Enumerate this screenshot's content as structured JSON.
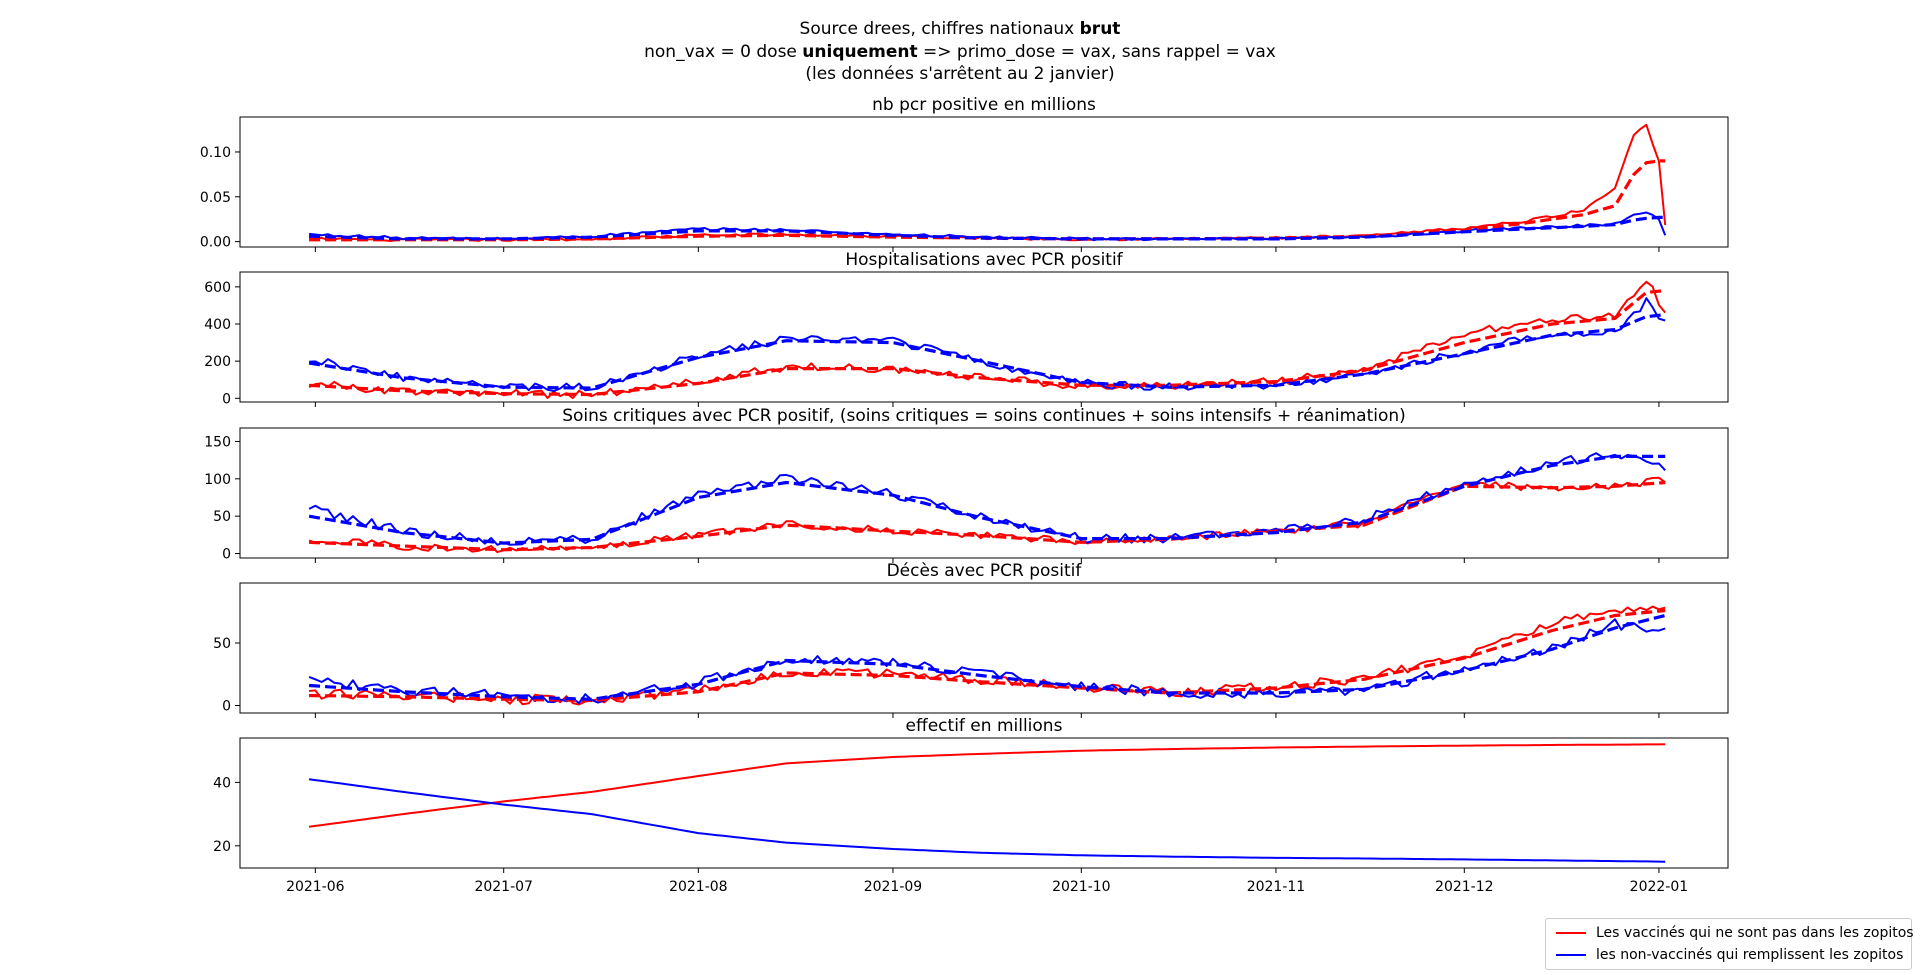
{
  "suptitle": {
    "line1_prefix": "Source drees, chiffres nationaux ",
    "line1_bold": "brut",
    "line2_prefix": "non_vax = 0 dose ",
    "line2_bold": "uniquement",
    "line2_suffix": " => primo_dose = vax, sans rappel = vax",
    "line3": "(les données s'arrêtent au 2 janvier)"
  },
  "colors": {
    "vax": "#ff0000",
    "nonvax": "#0000ff"
  },
  "legend": [
    {
      "label": "Les vaccinés qui ne sont pas dans les zopitos",
      "color": "#ff0000"
    },
    {
      "label": "les non-vaccinés qui remplissent les zopitos",
      "color": "#0000ff"
    }
  ],
  "chart_data": [
    {
      "type": "line",
      "title": "nb pcr positive en millions",
      "ylim": [
        -0.006,
        0.139
      ],
      "yticks": [
        0.0,
        0.05,
        0.1
      ],
      "yticklabels": [
        "0.00",
        "0.05",
        "0.10"
      ],
      "x_knots": [
        "2021-05-31",
        "2021-06-15",
        "2021-07-01",
        "2021-07-15",
        "2021-08-01",
        "2021-08-15",
        "2021-09-01",
        "2021-09-15",
        "2021-10-01",
        "2021-10-15",
        "2021-11-01",
        "2021-11-15",
        "2021-12-01",
        "2021-12-10",
        "2021-12-20",
        "2021-12-25",
        "2021-12-28",
        "2021-12-30",
        "2022-01-01",
        "2022-01-02"
      ],
      "series": [
        {
          "color": "#ff0000",
          "noise": 0.0015,
          "values": [
            0.003,
            0.002,
            0.002,
            0.003,
            0.007,
            0.008,
            0.006,
            0.004,
            0.003,
            0.003,
            0.004,
            0.006,
            0.015,
            0.022,
            0.035,
            0.06,
            0.12,
            0.13,
            0.09,
            0.02
          ]
        },
        {
          "color": "#0000ff",
          "noise": 0.0015,
          "values": [
            0.008,
            0.004,
            0.003,
            0.006,
            0.014,
            0.013,
            0.008,
            0.005,
            0.003,
            0.003,
            0.003,
            0.005,
            0.012,
            0.015,
            0.018,
            0.02,
            0.03,
            0.033,
            0.025,
            0.008
          ]
        },
        {
          "color": "#ff0000",
          "dashed": true,
          "values": [
            0.002,
            0.002,
            0.002,
            0.003,
            0.006,
            0.007,
            0.005,
            0.004,
            0.003,
            0.003,
            0.004,
            0.006,
            0.013,
            0.02,
            0.03,
            0.04,
            0.075,
            0.088,
            0.09,
            0.09
          ]
        },
        {
          "color": "#0000ff",
          "dashed": true,
          "values": [
            0.006,
            0.003,
            0.003,
            0.005,
            0.012,
            0.012,
            0.007,
            0.004,
            0.003,
            0.003,
            0.003,
            0.005,
            0.011,
            0.014,
            0.017,
            0.019,
            0.024,
            0.026,
            0.027,
            0.027
          ]
        }
      ]
    },
    {
      "type": "line",
      "title": "Hospitalisations avec PCR positif",
      "ylim": [
        -20,
        680
      ],
      "yticks": [
        0,
        200,
        400,
        600
      ],
      "yticklabels": [
        "0",
        "200",
        "400",
        "600"
      ],
      "x_knots": [
        "2021-05-31",
        "2021-06-15",
        "2021-07-01",
        "2021-07-15",
        "2021-08-01",
        "2021-08-15",
        "2021-09-01",
        "2021-09-15",
        "2021-10-01",
        "2021-10-15",
        "2021-11-01",
        "2021-11-15",
        "2021-12-01",
        "2021-12-15",
        "2021-12-25",
        "2021-12-30",
        "2022-01-02"
      ],
      "series": [
        {
          "color": "#ff0000",
          "noise": 22,
          "values": [
            80,
            35,
            25,
            20,
            90,
            170,
            160,
            110,
            70,
            70,
            90,
            150,
            350,
            420,
            450,
            640,
            460
          ]
        },
        {
          "color": "#0000ff",
          "noise": 22,
          "values": [
            215,
            110,
            60,
            60,
            230,
            320,
            310,
            200,
            80,
            60,
            70,
            130,
            250,
            350,
            360,
            520,
            410
          ]
        },
        {
          "color": "#ff0000",
          "dashed": true,
          "values": [
            70,
            40,
            25,
            20,
            80,
            160,
            160,
            110,
            70,
            70,
            90,
            150,
            300,
            400,
            430,
            570,
            580
          ]
        },
        {
          "color": "#0000ff",
          "dashed": true,
          "values": [
            190,
            110,
            60,
            55,
            220,
            310,
            300,
            200,
            85,
            60,
            70,
            130,
            240,
            340,
            370,
            440,
            450
          ]
        }
      ]
    },
    {
      "type": "line",
      "title": "Soins critiques  avec PCR positif, (soins critiques = soins continues + soins intensifs + réanimation)",
      "ylim": [
        -6,
        168
      ],
      "yticks": [
        0,
        50,
        100,
        150
      ],
      "yticklabels": [
        "0",
        "50",
        "100",
        "150"
      ],
      "x_knots": [
        "2021-05-31",
        "2021-06-15",
        "2021-07-01",
        "2021-07-15",
        "2021-08-01",
        "2021-08-15",
        "2021-09-01",
        "2021-09-15",
        "2021-10-01",
        "2021-10-15",
        "2021-11-01",
        "2021-11-15",
        "2021-12-01",
        "2021-12-15",
        "2021-12-25",
        "2022-01-02"
      ],
      "series": [
        {
          "color": "#ff0000",
          "noise": 5,
          "values": [
            18,
            10,
            5,
            8,
            25,
            40,
            30,
            25,
            15,
            20,
            30,
            40,
            95,
            85,
            90,
            100
          ]
        },
        {
          "color": "#0000ff",
          "noise": 6,
          "values": [
            60,
            30,
            15,
            20,
            80,
            100,
            80,
            50,
            20,
            20,
            30,
            45,
            95,
            120,
            135,
            115
          ]
        },
        {
          "color": "#ff0000",
          "dashed": true,
          "values": [
            15,
            10,
            5,
            8,
            23,
            38,
            30,
            24,
            15,
            19,
            30,
            38,
            90,
            88,
            90,
            95
          ]
        },
        {
          "color": "#0000ff",
          "dashed": true,
          "values": [
            50,
            28,
            14,
            19,
            75,
            95,
            78,
            48,
            20,
            20,
            28,
            42,
            90,
            118,
            130,
            130
          ]
        }
      ]
    },
    {
      "type": "line",
      "title": "Décès avec PCR positif",
      "ylim": [
        -6,
        98
      ],
      "yticks": [
        0,
        50
      ],
      "yticklabels": [
        "0",
        "50"
      ],
      "x_knots": [
        "2021-05-31",
        "2021-06-15",
        "2021-07-01",
        "2021-07-15",
        "2021-08-01",
        "2021-08-15",
        "2021-09-01",
        "2021-09-15",
        "2021-10-01",
        "2021-10-15",
        "2021-11-01",
        "2021-11-15",
        "2021-12-01",
        "2021-12-15",
        "2021-12-25",
        "2022-01-02"
      ],
      "series": [
        {
          "color": "#ff0000",
          "noise": 4,
          "values": [
            9,
            8,
            5,
            4,
            12,
            27,
            25,
            20,
            15,
            10,
            15,
            22,
            40,
            65,
            75,
            78
          ]
        },
        {
          "color": "#0000ff",
          "noise": 4,
          "values": [
            20,
            12,
            8,
            5,
            18,
            38,
            35,
            25,
            15,
            10,
            10,
            12,
            30,
            45,
            65,
            60
          ]
        },
        {
          "color": "#ff0000",
          "dashed": true,
          "values": [
            8,
            7,
            5,
            4,
            11,
            26,
            24,
            19,
            14,
            10,
            14,
            21,
            38,
            60,
            72,
            76
          ]
        },
        {
          "color": "#0000ff",
          "dashed": true,
          "values": [
            16,
            11,
            7,
            5,
            17,
            36,
            33,
            24,
            15,
            10,
            10,
            13,
            28,
            45,
            62,
            72
          ]
        }
      ]
    },
    {
      "type": "line",
      "title": "effectif en millions",
      "ylim": [
        13,
        54
      ],
      "yticks": [
        20,
        40
      ],
      "yticklabels": [
        "20",
        "40"
      ],
      "x_knots": [
        "2021-05-31",
        "2021-06-15",
        "2021-07-01",
        "2021-07-15",
        "2021-08-01",
        "2021-08-15",
        "2021-09-01",
        "2021-09-15",
        "2021-10-01",
        "2021-10-15",
        "2021-11-01",
        "2021-11-15",
        "2021-12-01",
        "2021-12-15",
        "2022-01-02"
      ],
      "series": [
        {
          "color": "#ff0000",
          "values": [
            26,
            30,
            34,
            37,
            42,
            46,
            48,
            49,
            50,
            50.5,
            51,
            51.3,
            51.6,
            51.8,
            52
          ]
        },
        {
          "color": "#0000ff",
          "values": [
            41,
            37,
            33,
            30,
            24,
            21,
            19,
            17.8,
            17,
            16.6,
            16.2,
            16,
            15.7,
            15.4,
            15
          ]
        }
      ]
    }
  ],
  "xaxis": {
    "start": "2021-05-31",
    "end": "2022-01-02",
    "xlim": [
      "2021-05-20",
      "2022-01-12"
    ],
    "ticks": [
      "2021-06-01",
      "2021-07-01",
      "2021-08-01",
      "2021-09-01",
      "2021-10-01",
      "2021-11-01",
      "2021-12-01",
      "2022-01-01"
    ],
    "ticklabels": [
      "2021-06",
      "2021-07",
      "2021-08",
      "2021-09",
      "2021-10",
      "2021-11",
      "2021-12",
      "2022-01"
    ]
  }
}
